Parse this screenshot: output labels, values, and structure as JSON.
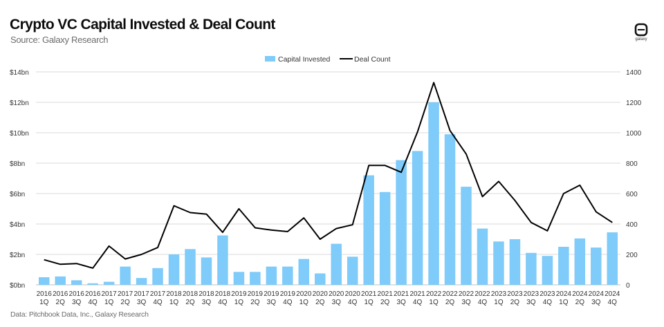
{
  "header": {
    "title": "Crypto VC Capital Invested & Deal Count",
    "subtitle": "Source: Galaxy Research",
    "logo_text": "galaxy"
  },
  "footer": {
    "text": "Data: Pitchbook Data, Inc., Galaxy Research"
  },
  "colors": {
    "bar": "#7fcbf9",
    "line": "#000000",
    "grid": "#d9d9d9"
  },
  "chart_data": {
    "type": "bar",
    "title": "Crypto VC Capital Invested & Deal Count",
    "subtitle": "Source: Galaxy Research",
    "categories": [
      [
        "2016",
        "1Q"
      ],
      [
        "2016",
        "2Q"
      ],
      [
        "2016",
        "3Q"
      ],
      [
        "2016",
        "4Q"
      ],
      [
        "2017",
        "1Q"
      ],
      [
        "2017",
        "2Q"
      ],
      [
        "2017",
        "3Q"
      ],
      [
        "2017",
        "4Q"
      ],
      [
        "2018",
        "1Q"
      ],
      [
        "2018",
        "2Q"
      ],
      [
        "2018",
        "3Q"
      ],
      [
        "2018",
        "4Q"
      ],
      [
        "2019",
        "1Q"
      ],
      [
        "2019",
        "2Q"
      ],
      [
        "2019",
        "3Q"
      ],
      [
        "2019",
        "4Q"
      ],
      [
        "2020",
        "1Q"
      ],
      [
        "2020",
        "2Q"
      ],
      [
        "2020",
        "3Q"
      ],
      [
        "2020",
        "4Q"
      ],
      [
        "2021",
        "1Q"
      ],
      [
        "2021",
        "2Q"
      ],
      [
        "2021",
        "3Q"
      ],
      [
        "2021",
        "4Q"
      ],
      [
        "2022",
        "1Q"
      ],
      [
        "2022",
        "2Q"
      ],
      [
        "2022",
        "3Q"
      ],
      [
        "2022",
        "4Q"
      ],
      [
        "2023",
        "1Q"
      ],
      [
        "2023",
        "2Q"
      ],
      [
        "2023",
        "3Q"
      ],
      [
        "2023",
        "4Q"
      ],
      [
        "2024",
        "1Q"
      ],
      [
        "2024",
        "2Q"
      ],
      [
        "2024",
        "3Q"
      ],
      [
        "2024",
        "4Q"
      ]
    ],
    "series": [
      {
        "name": "Capital Invested",
        "type": "bar",
        "axis": "left",
        "values": [
          0.5,
          0.55,
          0.3,
          0.1,
          0.2,
          1.2,
          0.45,
          1.1,
          2.0,
          2.35,
          1.8,
          3.25,
          0.85,
          0.85,
          1.2,
          1.2,
          1.7,
          0.75,
          2.7,
          1.85,
          7.2,
          6.1,
          8.2,
          8.8,
          12.0,
          9.9,
          6.45,
          3.7,
          2.85,
          3.0,
          2.1,
          1.9,
          2.5,
          3.05,
          2.45,
          3.45
        ]
      },
      {
        "name": "Deal Count",
        "type": "line",
        "axis": "right",
        "values": [
          165,
          135,
          140,
          110,
          255,
          170,
          200,
          245,
          520,
          475,
          465,
          345,
          500,
          375,
          360,
          350,
          440,
          300,
          370,
          395,
          785,
          785,
          740,
          1005,
          1330,
          1015,
          860,
          580,
          680,
          555,
          410,
          355,
          600,
          655,
          480,
          410
        ]
      }
    ],
    "y_left": {
      "min": 0,
      "max": 14,
      "step": 2,
      "tick_labels": [
        "$0bn",
        "$2bn",
        "$4bn",
        "$6bn",
        "$8bn",
        "$10bn",
        "$12bn",
        "$14bn"
      ]
    },
    "y_right": {
      "min": 0,
      "max": 1400,
      "step": 200,
      "tick_labels": [
        "0",
        "200",
        "400",
        "600",
        "800",
        "1000",
        "1200",
        "1400"
      ]
    },
    "grid": true,
    "legend": {
      "position": "top-center",
      "items": [
        "Capital Invested",
        "Deal Count"
      ]
    }
  }
}
